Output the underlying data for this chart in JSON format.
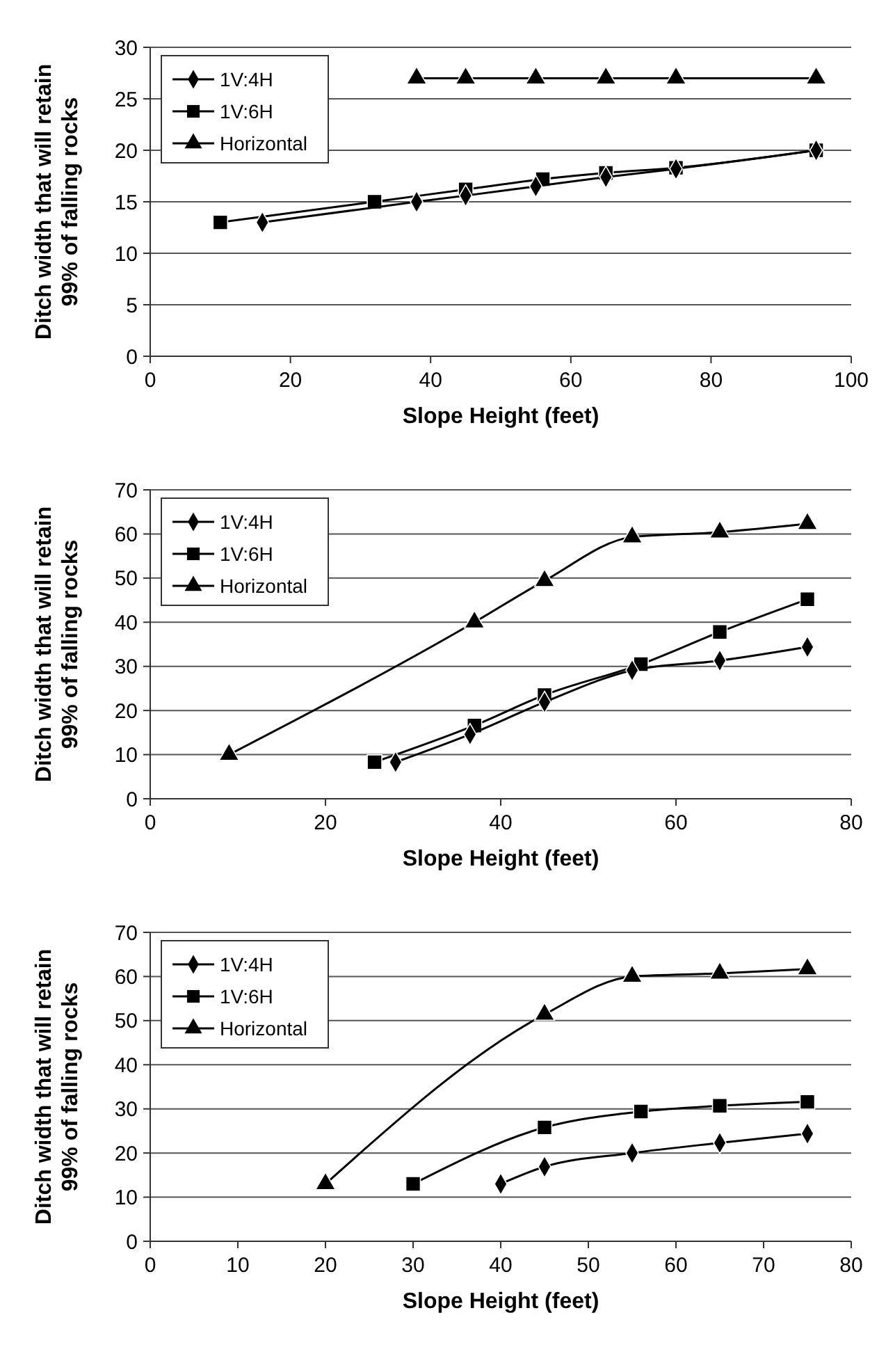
{
  "chart_data": [
    {
      "type": "line",
      "xlabel": "Slope Height (feet)",
      "ylabel": "Ditch width that will retain 99% of falling rocks",
      "xlim": [
        0,
        100
      ],
      "xticks": [
        0,
        20,
        40,
        60,
        80,
        100
      ],
      "ylim": [
        0,
        30
      ],
      "yticks": [
        0,
        5,
        10,
        15,
        20,
        25,
        30
      ],
      "grid": "y",
      "legend": "top left",
      "series": [
        {
          "name": "1V:4H",
          "color": "#000000",
          "marker": "diamond",
          "x": [
            16,
            38,
            45,
            55,
            65,
            75,
            95
          ],
          "values": [
            13,
            15,
            15.6,
            16.5,
            17.4,
            18.2,
            20
          ]
        },
        {
          "name": "1V:6H",
          "color": "#000000",
          "marker": "square",
          "x": [
            10,
            32,
            45,
            56,
            65,
            75,
            95
          ],
          "values": [
            13,
            15,
            16.2,
            17.2,
            17.8,
            18.3,
            20
          ]
        },
        {
          "name": "Horizontal",
          "color": "#000000",
          "marker": "triangle",
          "x": [
            38,
            45,
            55,
            65,
            75,
            95
          ],
          "values": [
            27,
            27,
            27,
            27,
            27,
            27
          ]
        }
      ]
    },
    {
      "type": "line",
      "xlabel": "Slope Height (feet)",
      "ylabel": "Ditch width that will retain 99% of falling rocks",
      "xlim": [
        0,
        80
      ],
      "xticks": [
        0,
        20,
        40,
        60,
        80
      ],
      "ylim": [
        0,
        70
      ],
      "yticks": [
        0,
        10,
        20,
        30,
        40,
        50,
        60,
        70
      ],
      "grid": "y",
      "legend": "top left",
      "series": [
        {
          "name": "1V:4H",
          "color": "#000000",
          "marker": "diamond",
          "x": [
            28,
            36.5,
            45,
            55,
            65,
            75
          ],
          "values": [
            8.3,
            14.6,
            21.9,
            29.1,
            31.3,
            34.4
          ]
        },
        {
          "name": "1V:6H",
          "color": "#000000",
          "marker": "square",
          "x": [
            25.6,
            37,
            45,
            56,
            65,
            75
          ],
          "values": [
            8.3,
            16.6,
            23.5,
            30.5,
            37.8,
            45.2
          ]
        },
        {
          "name": "Horizontal",
          "color": "#000000",
          "marker": "triangle",
          "x": [
            9,
            37,
            45,
            55,
            65,
            75
          ],
          "values": [
            10,
            40,
            49.4,
            59.3,
            60.4,
            62.3
          ]
        }
      ]
    },
    {
      "type": "line",
      "xlabel": "Slope Height (feet)",
      "ylabel": "Ditch width that will retain 99% of falling rocks",
      "xlim": [
        0,
        80
      ],
      "xticks": [
        0,
        10,
        20,
        30,
        40,
        50,
        60,
        70,
        80
      ],
      "ylim": [
        0,
        70
      ],
      "yticks": [
        0,
        10,
        20,
        30,
        40,
        50,
        60,
        70
      ],
      "grid": "y",
      "legend": "top left",
      "series": [
        {
          "name": "1V:4H",
          "color": "#000000",
          "marker": "diamond",
          "x": [
            40,
            45,
            55,
            65,
            75
          ],
          "values": [
            13,
            16.9,
            20,
            22.3,
            24.4
          ]
        },
        {
          "name": "1V:6H",
          "color": "#000000",
          "marker": "square",
          "x": [
            30,
            45,
            56,
            65,
            75
          ],
          "values": [
            13,
            25.8,
            29.4,
            30.7,
            31.6
          ]
        },
        {
          "name": "Horizontal",
          "color": "#000000",
          "marker": "triangle",
          "x": [
            20,
            45,
            55,
            65,
            75
          ],
          "values": [
            13,
            51.4,
            60,
            60.7,
            61.7
          ]
        }
      ]
    }
  ]
}
